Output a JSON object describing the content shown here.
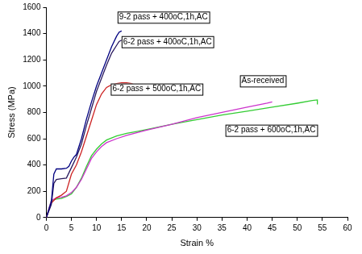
{
  "chart_data": {
    "type": "line",
    "x_label": "Strain %",
    "y_label": "Stress (MPa)",
    "xlim": [
      0,
      60
    ],
    "xticks": [
      0,
      5,
      10,
      15,
      20,
      25,
      30,
      35,
      40,
      45,
      50,
      55,
      60
    ],
    "ylim": [
      0,
      1600
    ],
    "yticks": [
      0,
      200,
      400,
      600,
      800,
      1000,
      1200,
      1400,
      1600
    ],
    "grid": false,
    "series": [
      {
        "name": "9-2 pass + 400oC,1h,AC",
        "color": "#000080",
        "x": [
          0,
          1,
          1.5,
          2,
          3,
          4,
          4.5,
          5,
          5.5,
          6,
          7,
          8,
          9,
          10,
          11,
          12,
          13,
          14,
          14.5,
          15
        ],
        "values": [
          0,
          120,
          330,
          370,
          370,
          375,
          390,
          430,
          460,
          480,
          600,
          750,
          880,
          1000,
          1100,
          1200,
          1300,
          1380,
          1410,
          1420
        ]
      },
      {
        "name": "6-2 pass + 400oC,1h,AC",
        "color": "#2a1a5e",
        "x": [
          0,
          1,
          1.5,
          2,
          3,
          4,
          5,
          6,
          7,
          8,
          9,
          10,
          11,
          12,
          13,
          14,
          14.5,
          15
        ],
        "values": [
          0,
          100,
          260,
          290,
          295,
          300,
          380,
          460,
          560,
          700,
          830,
          960,
          1060,
          1160,
          1250,
          1310,
          1340,
          1350
        ]
      },
      {
        "name": "6-2 pass + 500oC,1h,AC",
        "color": "#cc2222",
        "x": [
          0,
          1,
          2,
          3,
          4,
          5,
          6,
          7,
          8,
          9,
          10,
          11,
          12,
          13,
          14,
          15,
          16,
          17,
          17.5,
          17.5
        ],
        "values": [
          0,
          110,
          150,
          170,
          200,
          330,
          400,
          500,
          620,
          740,
          860,
          940,
          990,
          1010,
          1020,
          1025,
          1025,
          1020,
          1010,
          940
        ]
      },
      {
        "name": "As-received",
        "color": "#cc33cc",
        "x": [
          0,
          1,
          2,
          3,
          4,
          5,
          6,
          7,
          8,
          9,
          10,
          11,
          12,
          14,
          16,
          18,
          20,
          25,
          30,
          35,
          40,
          44,
          45
        ],
        "values": [
          0,
          130,
          150,
          155,
          165,
          190,
          230,
          290,
          370,
          450,
          500,
          540,
          570,
          600,
          625,
          645,
          665,
          710,
          760,
          800,
          840,
          870,
          880
        ]
      },
      {
        "name": "6-2 pass + 600oC,1h,AC",
        "color": "#33cc33",
        "x": [
          0,
          1,
          2,
          3,
          4,
          5,
          6,
          7,
          8,
          9,
          10,
          11,
          12,
          14,
          16,
          18,
          20,
          25,
          30,
          35,
          40,
          45,
          50,
          53,
          54,
          54
        ],
        "values": [
          0,
          130,
          140,
          145,
          160,
          180,
          230,
          300,
          390,
          470,
          520,
          560,
          590,
          620,
          640,
          655,
          670,
          710,
          745,
          780,
          810,
          840,
          870,
          890,
          895,
          860
        ]
      }
    ]
  }
}
